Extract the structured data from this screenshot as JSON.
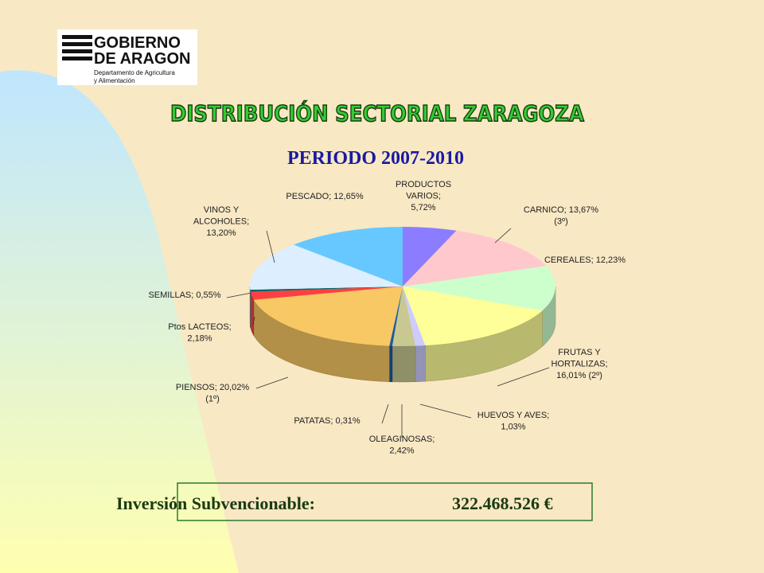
{
  "logo": {
    "line1": "GOBIERNO",
    "line2": "DE ARAGON",
    "line3": "Departamento de Agricultura",
    "line4": "y Alimentación"
  },
  "chart_data": {
    "type": "pie3d",
    "title": "DISTRIBUCIÓN SECTORIAL ZARAGOZA",
    "subtitle": "PERIODO 2007-2010",
    "values": [
      5.72,
      13.67,
      12.23,
      16.01,
      1.03,
      2.42,
      0.31,
      20.02,
      2.18,
      0.55,
      13.2,
      12.65
    ],
    "value_labels": [
      [
        "PRODUCTOS",
        "VARIOS;",
        "5,72%"
      ],
      [
        "CARNICO; 13,67%",
        "(3º)"
      ],
      [
        "CEREALES; 12,23%"
      ],
      [
        "FRUTAS Y",
        "HORTALIZAS;",
        "16,01% (2º)"
      ],
      [
        "HUEVOS Y AVES;",
        "1,03%"
      ],
      [
        "OLEAGINOSAS;",
        "2,42%"
      ],
      [
        "PATATAS; 0,31%"
      ],
      [
        "PIENSOS; 20,02%",
        "(1º)"
      ],
      [
        "Ptos LACTEOS;",
        "2,18%"
      ],
      [
        "SEMILLAS; 0,55%"
      ],
      [
        "VINOS Y",
        "ALCOHOLES;",
        "13,20%"
      ],
      [
        "PESCADO; 12,65%"
      ]
    ],
    "colors": [
      "#8c7cff",
      "#ffc8cc",
      "#ccffcc",
      "#ffff99",
      "#ccccff",
      "#c8c890",
      "#1a5aa0",
      "#f8c864",
      "#ff4040",
      "#006666",
      "#ddeeff",
      "#66c8ff"
    ]
  },
  "footer": {
    "label": "Inversión Subvencionable:",
    "amount": "322.468.526 €"
  }
}
